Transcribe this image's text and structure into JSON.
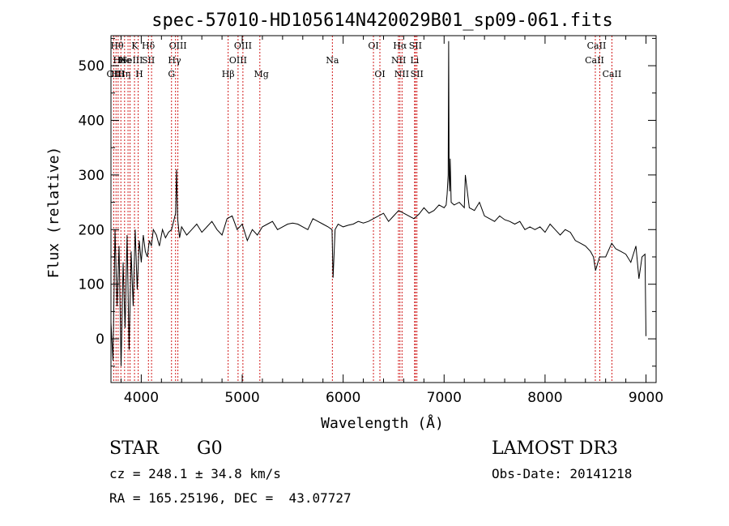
{
  "chart_data": {
    "type": "line",
    "title": "spec-57010-HD105614N420029B01_sp09-061.fits",
    "xlabel": "Wavelength (Å)",
    "ylabel": "Flux (relative)",
    "xlim": [
      3700,
      9100
    ],
    "ylim": [
      -80,
      555
    ],
    "xticks": [
      "4000",
      "5000",
      "6000",
      "7000",
      "8000",
      "9000"
    ],
    "yticks": [
      "0",
      "100",
      "200",
      "300",
      "400",
      "500"
    ],
    "grid": false,
    "line_color": "#000000",
    "marker_color": "#cc0000",
    "series": [
      {
        "x": [
          3700,
          3720,
          3740,
          3760,
          3780,
          3800,
          3820,
          3840,
          3860,
          3880,
          3900,
          3920,
          3940,
          3960,
          3980,
          4000,
          4020,
          4040,
          4060,
          4080,
          4100,
          4120,
          4150,
          4180,
          4210,
          4240,
          4270,
          4300,
          4320,
          4340,
          4350,
          4360,
          4380,
          4400,
          4450,
          4500,
          4550,
          4600,
          4650,
          4700,
          4750,
          4800,
          4850,
          4900,
          4950,
          5000,
          5050,
          5100,
          5150,
          5200,
          5250,
          5300,
          5350,
          5400,
          5450,
          5500,
          5550,
          5600,
          5650,
          5700,
          5750,
          5800,
          5850,
          5890,
          5900,
          5920,
          5950,
          6000,
          6050,
          6100,
          6150,
          6200,
          6250,
          6300,
          6350,
          6400,
          6450,
          6500,
          6550,
          6600,
          6650,
          6700,
          6750,
          6800,
          6850,
          6900,
          6950,
          7000,
          7020,
          7030,
          7040,
          7045,
          7050,
          7055,
          7060,
          7070,
          7100,
          7150,
          7200,
          7210,
          7250,
          7300,
          7350,
          7400,
          7450,
          7500,
          7550,
          7600,
          7650,
          7700,
          7750,
          7800,
          7850,
          7900,
          7950,
          8000,
          8050,
          8100,
          8150,
          8200,
          8250,
          8300,
          8350,
          8400,
          8450,
          8480,
          8500,
          8540,
          8600,
          8660,
          8700,
          8750,
          8800,
          8850,
          8900,
          8930,
          8960,
          8990,
          9000
        ],
        "values": [
          30,
          -40,
          200,
          60,
          170,
          -50,
          140,
          20,
          190,
          -20,
          160,
          60,
          200,
          90,
          180,
          140,
          190,
          160,
          150,
          180,
          170,
          200,
          190,
          170,
          200,
          185,
          195,
          200,
          215,
          230,
          310,
          220,
          185,
          205,
          190,
          200,
          210,
          195,
          205,
          215,
          200,
          190,
          220,
          225,
          200,
          210,
          180,
          200,
          190,
          205,
          210,
          215,
          200,
          205,
          210,
          212,
          210,
          205,
          200,
          220,
          215,
          210,
          205,
          200,
          112,
          200,
          210,
          205,
          208,
          210,
          215,
          212,
          215,
          220,
          225,
          230,
          215,
          225,
          235,
          230,
          225,
          220,
          228,
          240,
          230,
          235,
          245,
          240,
          245,
          265,
          300,
          545,
          295,
          270,
          330,
          250,
          245,
          250,
          240,
          300,
          240,
          235,
          250,
          225,
          220,
          215,
          225,
          218,
          215,
          210,
          215,
          200,
          205,
          200,
          205,
          195,
          210,
          200,
          190,
          200,
          195,
          180,
          175,
          170,
          160,
          150,
          125,
          150,
          150,
          175,
          165,
          160,
          155,
          140,
          170,
          110,
          150,
          155,
          5
        ]
      }
    ],
    "line_markers": [
      {
        "x": 3727,
        "label": "OII"
      },
      {
        "x": 3750,
        "label": "Hθ"
      },
      {
        "x": 3771,
        "label": "Hη"
      },
      {
        "x": 3798,
        "label": "Hθ"
      },
      {
        "x": 3835,
        "label": "Hη"
      },
      {
        "x": 3869,
        "label": "NeIII"
      },
      {
        "x": 3889,
        "label": "He"
      },
      {
        "x": 3933,
        "label": "K"
      },
      {
        "x": 3970,
        "label": "H"
      },
      {
        "x": 4071,
        "label": "SII"
      },
      {
        "x": 4102,
        "label": "Hδ"
      },
      {
        "x": 4300,
        "label": "G"
      },
      {
        "x": 4340,
        "label": "Hγ"
      },
      {
        "x": 4363,
        "label": "OIII"
      },
      {
        "x": 4861,
        "label": "Hβ"
      },
      {
        "x": 4959,
        "label": "OIII"
      },
      {
        "x": 5007,
        "label": "OIII"
      },
      {
        "x": 5175,
        "label": "Mg"
      },
      {
        "x": 5893,
        "label": "Na"
      },
      {
        "x": 6300,
        "label": "OI"
      },
      {
        "x": 6364,
        "label": "OI"
      },
      {
        "x": 6548,
        "label": "NII"
      },
      {
        "x": 6563,
        "label": "Hα"
      },
      {
        "x": 6583,
        "label": "NII"
      },
      {
        "x": 6708,
        "label": "Li"
      },
      {
        "x": 6716,
        "label": "SII"
      },
      {
        "x": 6731,
        "label": "SII"
      },
      {
        "x": 8498,
        "label": "CaII"
      },
      {
        "x": 8542,
        "label": "CaII"
      },
      {
        "x": 8662,
        "label": "CaII"
      }
    ],
    "marker_labels": [
      {
        "x": 3727,
        "row": 2,
        "label": "OII"
      },
      {
        "x": 3760,
        "row": 0,
        "label": "Hθ"
      },
      {
        "x": 3764,
        "row": 2,
        "label": "Hθ"
      },
      {
        "x": 3785,
        "row": 1,
        "label": "He"
      },
      {
        "x": 3830,
        "row": 2,
        "label": "Hη"
      },
      {
        "x": 3836,
        "row": 1,
        "label": "He"
      },
      {
        "x": 3936,
        "row": 0,
        "label": "K"
      },
      {
        "x": 3900,
        "row": 1,
        "label": "NeIII"
      },
      {
        "x": 3980,
        "row": 2,
        "label": "H"
      },
      {
        "x": 4070,
        "row": 1,
        "label": "SII"
      },
      {
        "x": 4070,
        "row": 0,
        "label": "Hδ"
      },
      {
        "x": 4300,
        "row": 2,
        "label": "G"
      },
      {
        "x": 4330,
        "row": 1,
        "label": "Hγ"
      },
      {
        "x": 4363,
        "row": 0,
        "label": "OIII"
      },
      {
        "x": 4861,
        "row": 2,
        "label": "Hβ"
      },
      {
        "x": 4959,
        "row": 1,
        "label": "OIII"
      },
      {
        "x": 5007,
        "row": 0,
        "label": "OIII"
      },
      {
        "x": 5190,
        "row": 2,
        "label": "Mg"
      },
      {
        "x": 5893,
        "row": 1,
        "label": "Na"
      },
      {
        "x": 6300,
        "row": 0,
        "label": "OI"
      },
      {
        "x": 6364,
        "row": 2,
        "label": "OI"
      },
      {
        "x": 6563,
        "row": 0,
        "label": "Hα"
      },
      {
        "x": 6550,
        "row": 1,
        "label": "NII"
      },
      {
        "x": 6580,
        "row": 2,
        "label": "NII"
      },
      {
        "x": 6716,
        "row": 0,
        "label": "SII"
      },
      {
        "x": 6708,
        "row": 1,
        "label": "Li"
      },
      {
        "x": 6731,
        "row": 2,
        "label": "SII"
      },
      {
        "x": 8510,
        "row": 0,
        "label": "CaII"
      },
      {
        "x": 8490,
        "row": 1,
        "label": "CaII"
      },
      {
        "x": 8662,
        "row": 2,
        "label": "CaII"
      }
    ]
  },
  "info": {
    "object_class": "STAR",
    "subclass": "G0",
    "survey": "LAMOST DR3",
    "cz": "cz = 248.1 ± 34.8 km/s",
    "obs_date": "Obs-Date: 20141218",
    "coords": "RA = 165.25196, DEC =  43.07727"
  }
}
